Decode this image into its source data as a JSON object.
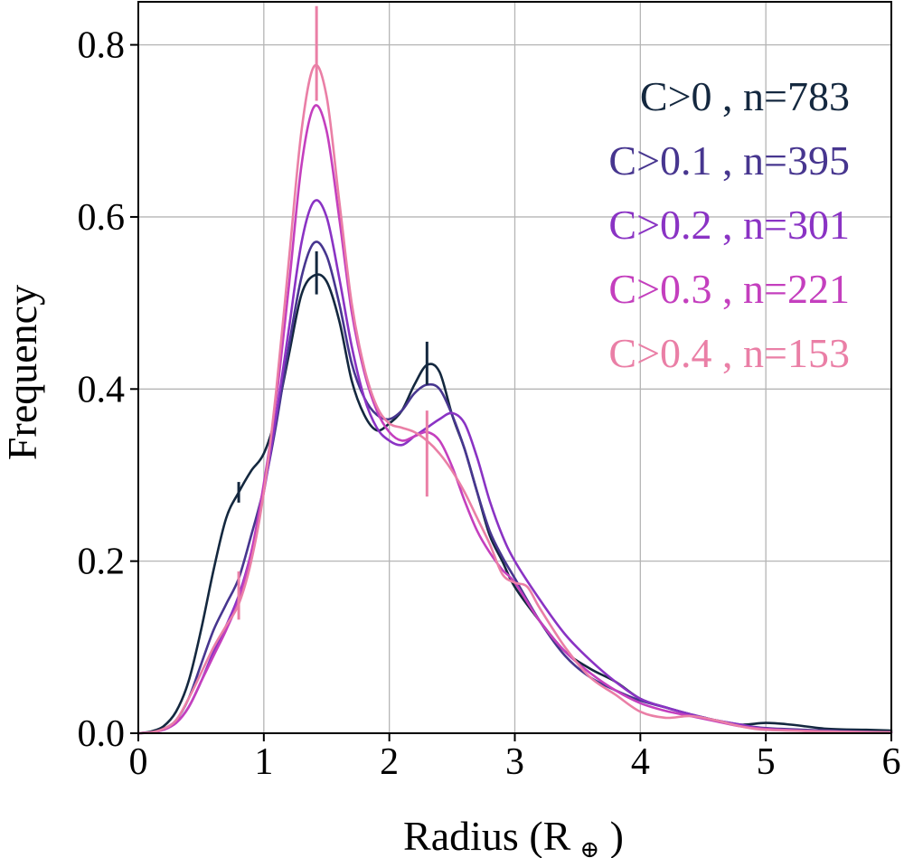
{
  "chart_data": {
    "type": "line",
    "title": "",
    "xlabel": "Radius (R",
    "xlabel_symbol": "⊕",
    "xlabel_close": " )",
    "ylabel": "Frequency",
    "xlim": [
      0,
      6
    ],
    "ylim": [
      0,
      0.85
    ],
    "xticks": [
      0,
      1,
      2,
      3,
      4,
      5,
      6
    ],
    "xtick_labels": [
      "0",
      "1",
      "2",
      "3",
      "4",
      "5",
      "6"
    ],
    "yticks": [
      0.0,
      0.2,
      0.4,
      0.6,
      0.8
    ],
    "ytick_labels": [
      "0.0",
      "0.2",
      "0.4",
      "0.6",
      "0.8"
    ],
    "grid": true,
    "legend_position": "top-right",
    "series": [
      {
        "name": "C>0 , n=783",
        "color": "#14283f",
        "points": [
          [
            0,
            0
          ],
          [
            0.1,
            0.002
          ],
          [
            0.2,
            0.008
          ],
          [
            0.3,
            0.025
          ],
          [
            0.4,
            0.06
          ],
          [
            0.5,
            0.12
          ],
          [
            0.6,
            0.19
          ],
          [
            0.7,
            0.25
          ],
          [
            0.8,
            0.28
          ],
          [
            0.9,
            0.305
          ],
          [
            1.0,
            0.325
          ],
          [
            1.1,
            0.37
          ],
          [
            1.2,
            0.44
          ],
          [
            1.3,
            0.51
          ],
          [
            1.4,
            0.532
          ],
          [
            1.5,
            0.525
          ],
          [
            1.6,
            0.48
          ],
          [
            1.7,
            0.41
          ],
          [
            1.8,
            0.37
          ],
          [
            1.9,
            0.352
          ],
          [
            2.0,
            0.36
          ],
          [
            2.1,
            0.375
          ],
          [
            2.2,
            0.405
          ],
          [
            2.3,
            0.428
          ],
          [
            2.4,
            0.42
          ],
          [
            2.5,
            0.37
          ],
          [
            2.6,
            0.33
          ],
          [
            2.7,
            0.28
          ],
          [
            2.8,
            0.23
          ],
          [
            2.9,
            0.2
          ],
          [
            3.0,
            0.17
          ],
          [
            3.2,
            0.13
          ],
          [
            3.4,
            0.095
          ],
          [
            3.6,
            0.075
          ],
          [
            3.8,
            0.06
          ],
          [
            4.0,
            0.04
          ],
          [
            4.2,
            0.03
          ],
          [
            4.4,
            0.022
          ],
          [
            4.6,
            0.015
          ],
          [
            4.8,
            0.01
          ],
          [
            5.0,
            0.012
          ],
          [
            5.2,
            0.01
          ],
          [
            5.5,
            0.005
          ],
          [
            5.8,
            0.004
          ],
          [
            6.0,
            0.003
          ]
        ],
        "markers": [
          {
            "x": 0.8,
            "y": 0.28,
            "half": 0.012
          },
          {
            "x": 1.42,
            "y": 0.535,
            "half": 0.025
          },
          {
            "x": 2.3,
            "y": 0.43,
            "half": 0.025
          }
        ]
      },
      {
        "name": "C>0.1 , n=395",
        "color": "#47368f",
        "points": [
          [
            0,
            0
          ],
          [
            0.1,
            0.001
          ],
          [
            0.2,
            0.005
          ],
          [
            0.3,
            0.015
          ],
          [
            0.4,
            0.04
          ],
          [
            0.5,
            0.08
          ],
          [
            0.6,
            0.12
          ],
          [
            0.7,
            0.15
          ],
          [
            0.8,
            0.18
          ],
          [
            0.9,
            0.23
          ],
          [
            1.0,
            0.285
          ],
          [
            1.1,
            0.36
          ],
          [
            1.2,
            0.45
          ],
          [
            1.3,
            0.53
          ],
          [
            1.4,
            0.57
          ],
          [
            1.5,
            0.555
          ],
          [
            1.6,
            0.5
          ],
          [
            1.7,
            0.43
          ],
          [
            1.8,
            0.39
          ],
          [
            1.9,
            0.37
          ],
          [
            2.0,
            0.365
          ],
          [
            2.1,
            0.375
          ],
          [
            2.2,
            0.395
          ],
          [
            2.3,
            0.405
          ],
          [
            2.4,
            0.4
          ],
          [
            2.5,
            0.37
          ],
          [
            2.6,
            0.33
          ],
          [
            2.7,
            0.28
          ],
          [
            2.8,
            0.235
          ],
          [
            2.9,
            0.205
          ],
          [
            3.0,
            0.18
          ],
          [
            3.2,
            0.13
          ],
          [
            3.4,
            0.09
          ],
          [
            3.6,
            0.065
          ],
          [
            3.8,
            0.05
          ],
          [
            4.0,
            0.038
          ],
          [
            4.2,
            0.03
          ],
          [
            4.4,
            0.022
          ],
          [
            4.6,
            0.015
          ],
          [
            4.8,
            0.01
          ],
          [
            5.0,
            0.006
          ],
          [
            5.5,
            0.003
          ],
          [
            6.0,
            0.001
          ]
        ]
      },
      {
        "name": "C>0.2 , n=301",
        "color": "#8a33c4",
        "points": [
          [
            0,
            0
          ],
          [
            0.1,
            0.001
          ],
          [
            0.2,
            0.004
          ],
          [
            0.3,
            0.012
          ],
          [
            0.4,
            0.03
          ],
          [
            0.5,
            0.06
          ],
          [
            0.6,
            0.095
          ],
          [
            0.7,
            0.125
          ],
          [
            0.8,
            0.16
          ],
          [
            0.9,
            0.21
          ],
          [
            1.0,
            0.28
          ],
          [
            1.1,
            0.37
          ],
          [
            1.2,
            0.47
          ],
          [
            1.3,
            0.57
          ],
          [
            1.4,
            0.618
          ],
          [
            1.5,
            0.6
          ],
          [
            1.6,
            0.53
          ],
          [
            1.7,
            0.45
          ],
          [
            1.8,
            0.39
          ],
          [
            1.9,
            0.355
          ],
          [
            2.0,
            0.34
          ],
          [
            2.1,
            0.335
          ],
          [
            2.2,
            0.345
          ],
          [
            2.3,
            0.355
          ],
          [
            2.4,
            0.365
          ],
          [
            2.5,
            0.372
          ],
          [
            2.6,
            0.36
          ],
          [
            2.7,
            0.32
          ],
          [
            2.8,
            0.27
          ],
          [
            2.9,
            0.23
          ],
          [
            3.0,
            0.2
          ],
          [
            3.2,
            0.155
          ],
          [
            3.4,
            0.115
          ],
          [
            3.6,
            0.085
          ],
          [
            3.8,
            0.06
          ],
          [
            4.0,
            0.04
          ],
          [
            4.2,
            0.03
          ],
          [
            4.4,
            0.022
          ],
          [
            4.6,
            0.015
          ],
          [
            4.8,
            0.01
          ],
          [
            5.0,
            0.005
          ],
          [
            5.5,
            0.002
          ],
          [
            6.0,
            0.001
          ]
        ]
      },
      {
        "name": "C>0.3 , n=221",
        "color": "#c43fbe",
        "points": [
          [
            0,
            0
          ],
          [
            0.1,
            0.001
          ],
          [
            0.2,
            0.004
          ],
          [
            0.3,
            0.012
          ],
          [
            0.4,
            0.03
          ],
          [
            0.5,
            0.06
          ],
          [
            0.6,
            0.09
          ],
          [
            0.7,
            0.12
          ],
          [
            0.8,
            0.155
          ],
          [
            0.9,
            0.21
          ],
          [
            1.0,
            0.29
          ],
          [
            1.1,
            0.39
          ],
          [
            1.2,
            0.52
          ],
          [
            1.3,
            0.66
          ],
          [
            1.4,
            0.728
          ],
          [
            1.5,
            0.7
          ],
          [
            1.6,
            0.6
          ],
          [
            1.7,
            0.49
          ],
          [
            1.8,
            0.42
          ],
          [
            1.9,
            0.375
          ],
          [
            2.0,
            0.35
          ],
          [
            2.1,
            0.34
          ],
          [
            2.2,
            0.345
          ],
          [
            2.3,
            0.35
          ],
          [
            2.4,
            0.34
          ],
          [
            2.5,
            0.31
          ],
          [
            2.6,
            0.27
          ],
          [
            2.7,
            0.235
          ],
          [
            2.8,
            0.21
          ],
          [
            2.9,
            0.19
          ],
          [
            3.0,
            0.175
          ],
          [
            3.2,
            0.13
          ],
          [
            3.4,
            0.095
          ],
          [
            3.6,
            0.07
          ],
          [
            3.8,
            0.05
          ],
          [
            4.0,
            0.035
          ],
          [
            4.2,
            0.026
          ],
          [
            4.4,
            0.02
          ],
          [
            4.6,
            0.014
          ],
          [
            4.8,
            0.008
          ],
          [
            5.0,
            0.005
          ],
          [
            5.5,
            0.002
          ],
          [
            6.0,
            0.001
          ]
        ]
      },
      {
        "name": "C>0.4 , n=153",
        "color": "#ea7fa6",
        "points": [
          [
            0,
            0
          ],
          [
            0.1,
            0.001
          ],
          [
            0.2,
            0.005
          ],
          [
            0.3,
            0.015
          ],
          [
            0.4,
            0.04
          ],
          [
            0.5,
            0.07
          ],
          [
            0.6,
            0.1
          ],
          [
            0.7,
            0.125
          ],
          [
            0.8,
            0.15
          ],
          [
            0.9,
            0.2
          ],
          [
            1.0,
            0.28
          ],
          [
            1.1,
            0.4
          ],
          [
            1.2,
            0.55
          ],
          [
            1.3,
            0.7
          ],
          [
            1.4,
            0.775
          ],
          [
            1.5,
            0.74
          ],
          [
            1.6,
            0.62
          ],
          [
            1.7,
            0.5
          ],
          [
            1.8,
            0.425
          ],
          [
            1.9,
            0.38
          ],
          [
            2.0,
            0.36
          ],
          [
            2.1,
            0.355
          ],
          [
            2.2,
            0.35
          ],
          [
            2.3,
            0.34
          ],
          [
            2.4,
            0.325
          ],
          [
            2.5,
            0.305
          ],
          [
            2.6,
            0.28
          ],
          [
            2.7,
            0.25
          ],
          [
            2.8,
            0.22
          ],
          [
            2.9,
            0.185
          ],
          [
            3.0,
            0.175
          ],
          [
            3.1,
            0.17
          ],
          [
            3.2,
            0.145
          ],
          [
            3.4,
            0.1
          ],
          [
            3.6,
            0.065
          ],
          [
            3.8,
            0.045
          ],
          [
            4.0,
            0.025
          ],
          [
            4.2,
            0.018
          ],
          [
            4.4,
            0.02
          ],
          [
            4.6,
            0.015
          ],
          [
            4.8,
            0.008
          ],
          [
            5.0,
            0.004
          ],
          [
            5.5,
            0.002
          ],
          [
            6.0,
            0.001
          ]
        ],
        "markers": [
          {
            "x": 0.8,
            "y": 0.16,
            "half": 0.028
          },
          {
            "x": 1.42,
            "y": 0.79,
            "half": 0.055
          },
          {
            "x": 2.3,
            "y": 0.325,
            "half": 0.05
          }
        ]
      }
    ]
  }
}
